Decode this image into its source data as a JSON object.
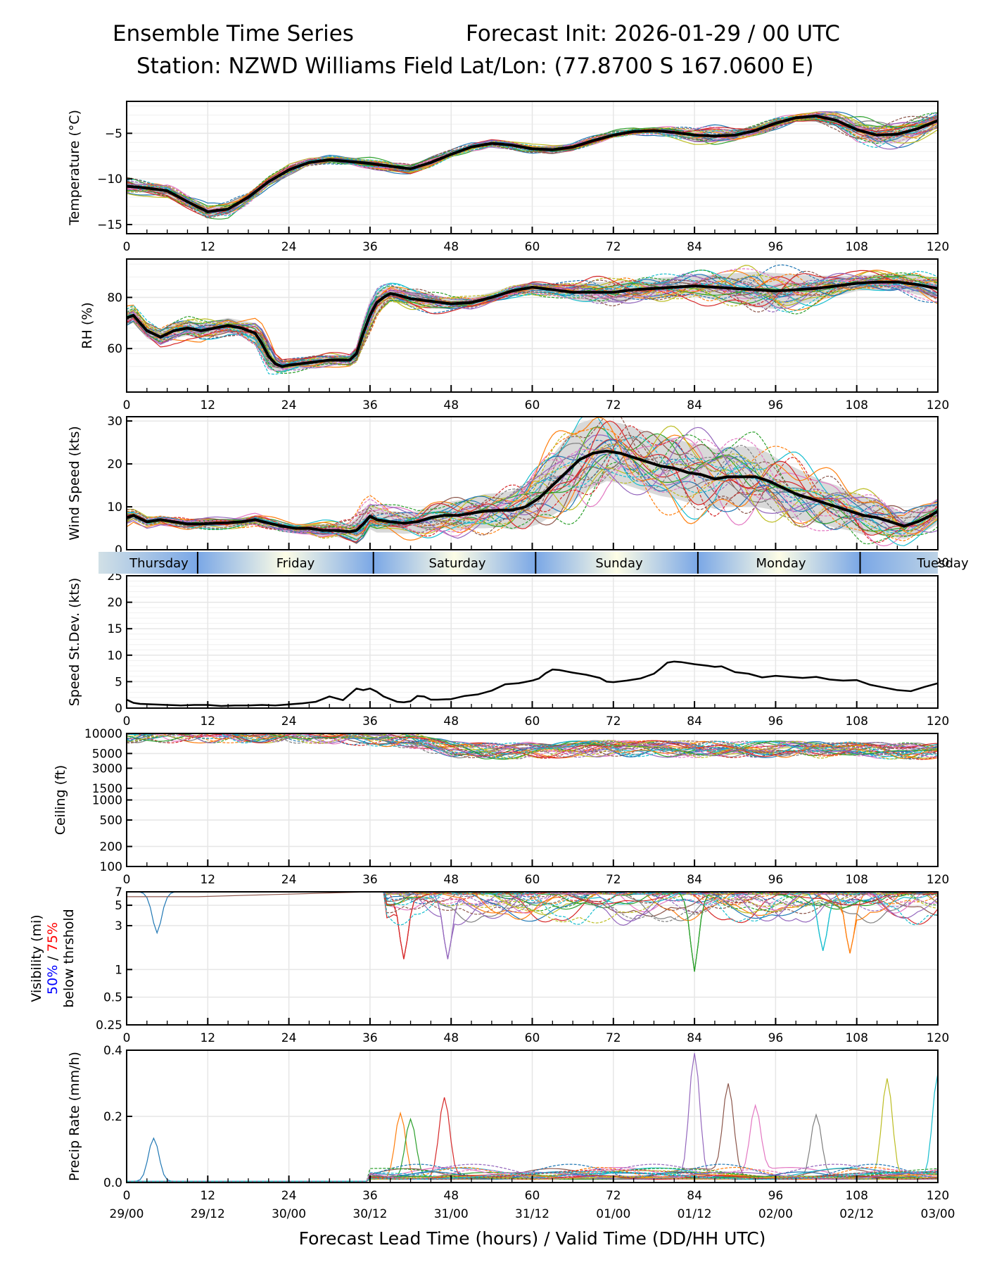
{
  "header": {
    "title_left": "Ensemble Time Series",
    "title_right": "Forecast Init: 2026-01-29 / 00 UTC",
    "station": "Station: NZWD Williams Field",
    "latlon": "Lat/Lon: (77.8700 S 167.0600 E)"
  },
  "colors": {
    "mean": "#000000",
    "spread": "#d9d9d9",
    "grid": "#e6e6e6",
    "members": [
      "#1f77b4",
      "#ff7f0e",
      "#2ca02c",
      "#d62728",
      "#9467bd",
      "#8c564b",
      "#e377c2",
      "#7f7f7f",
      "#bcbd22",
      "#17becf"
    ],
    "vis50": "#0000ff",
    "vis75": "#ff0000",
    "day_band_light": "#fdfde6",
    "day_band_dark": "#7aa7e6"
  },
  "x_axis": {
    "range": [
      0,
      120
    ],
    "ticks": [
      0,
      12,
      24,
      36,
      48,
      60,
      72,
      84,
      96,
      108,
      120
    ],
    "valid_time_labels": [
      "29/00",
      "29/12",
      "30/00",
      "30/12",
      "31/00",
      "31/12",
      "01/00",
      "01/12",
      "02/00",
      "02/12",
      "03/00"
    ],
    "label": "Forecast Lead Time (hours) / Valid Time (DD/HH UTC)"
  },
  "day_band": {
    "days": [
      {
        "label": "Thursday",
        "start": -2.5,
        "end": 10.5
      },
      {
        "label": "Friday",
        "start": 10.5,
        "end": 36.5
      },
      {
        "label": "Saturday",
        "start": 36.5,
        "end": 60.5
      },
      {
        "label": "Sunday",
        "start": 60.5,
        "end": 84.5
      },
      {
        "label": "Monday",
        "start": 84.5,
        "end": 108.5
      },
      {
        "label": "Tuesday",
        "start": 108.5,
        "end": 122.5
      }
    ]
  },
  "chart_data": [
    {
      "id": "temperature",
      "type": "line",
      "ylabel": "Temperature (°C)",
      "ylim": [
        -16,
        -1.5
      ],
      "yticks": [
        -15,
        -10,
        -5
      ],
      "ytick_labels": [
        "−15",
        "−10",
        "−5"
      ],
      "grid": true,
      "mean": {
        "x": [
          0,
          3,
          6,
          9,
          12,
          15,
          18,
          21,
          24,
          27,
          30,
          33,
          36,
          39,
          42,
          45,
          48,
          51,
          54,
          57,
          60,
          63,
          66,
          69,
          72,
          75,
          78,
          81,
          84,
          87,
          90,
          93,
          96,
          99,
          102,
          105,
          108,
          111,
          114,
          117,
          120
        ],
        "y": [
          -10.8,
          -11.0,
          -11.3,
          -12.5,
          -13.6,
          -13.3,
          -12.0,
          -10.3,
          -9.0,
          -8.2,
          -7.9,
          -8.1,
          -8.3,
          -8.6,
          -8.9,
          -8.2,
          -7.3,
          -6.5,
          -6.1,
          -6.3,
          -6.7,
          -6.8,
          -6.5,
          -5.8,
          -5.2,
          -4.8,
          -4.7,
          -4.9,
          -5.2,
          -5.3,
          -5.2,
          -4.7,
          -3.9,
          -3.3,
          -3.1,
          -3.6,
          -4.6,
          -5.2,
          -5.1,
          -4.5,
          -3.6
        ]
      },
      "spread_halfwidth": [
        0.6,
        0.5,
        0.5,
        0.5,
        0.6,
        0.6,
        0.5,
        0.4,
        0.4,
        0.3,
        0.3,
        0.3,
        0.4,
        0.4,
        0.4,
        0.4,
        0.3,
        0.3,
        0.3,
        0.3,
        0.3,
        0.3,
        0.3,
        0.3,
        0.3,
        0.3,
        0.3,
        0.4,
        0.6,
        0.7,
        0.6,
        0.4,
        0.4,
        0.3,
        0.4,
        0.6,
        0.9,
        1.0,
        1.0,
        0.9,
        0.7
      ],
      "member_count": 30
    },
    {
      "id": "rh",
      "type": "line",
      "ylabel": "RH (%)",
      "ylim": [
        43,
        95
      ],
      "yticks": [
        60,
        80
      ],
      "ytick_labels": [
        "60",
        "80"
      ],
      "grid": true,
      "mean": {
        "x": [
          0,
          1,
          3,
          5,
          7,
          9,
          11,
          13,
          15,
          17,
          19,
          20,
          21,
          22,
          23,
          24,
          27,
          30,
          33,
          34,
          35,
          36,
          37,
          38,
          39,
          40,
          42,
          45,
          48,
          51,
          54,
          57,
          60,
          63,
          66,
          69,
          72,
          75,
          78,
          81,
          84,
          87,
          90,
          93,
          96,
          99,
          102,
          105,
          108,
          111,
          114,
          117,
          120
        ],
        "y": [
          72,
          73,
          67,
          64.5,
          67,
          68,
          67,
          68,
          69,
          68,
          66,
          62,
          57,
          54,
          53,
          53.5,
          54.5,
          55.5,
          55.5,
          58,
          66,
          73,
          78,
          80,
          81.5,
          81,
          79.5,
          78.5,
          77.5,
          78,
          80,
          82.5,
          84,
          83,
          82,
          82,
          82,
          83,
          83.5,
          84,
          84.5,
          84,
          83.5,
          83,
          82.5,
          83,
          83.5,
          84.5,
          85.5,
          86,
          86,
          85,
          83.5
        ]
      },
      "spread_halfwidth": [
        3,
        3,
        3,
        3,
        3,
        3,
        3,
        3,
        3,
        3,
        4,
        5,
        5,
        3,
        2,
        2,
        2,
        2,
        2,
        3,
        5,
        6,
        5,
        4,
        3,
        3,
        3,
        3,
        2,
        2,
        2,
        2,
        2,
        2,
        3,
        4,
        4,
        4,
        4,
        4,
        4,
        5,
        6,
        7,
        7,
        6,
        5,
        4,
        3,
        3,
        3,
        4,
        4
      ],
      "member_count": 30
    },
    {
      "id": "wind_speed",
      "type": "line",
      "ylabel": "Wind Speed (kts)",
      "ylim": [
        0,
        31
      ],
      "yticks": [
        0,
        10,
        20,
        30
      ],
      "ytick_labels": [
        "0",
        "10",
        "20",
        "30"
      ],
      "grid": true,
      "mean": {
        "x": [
          0,
          1,
          3,
          5,
          7,
          9,
          11,
          13,
          15,
          17,
          19,
          21,
          23,
          25,
          27,
          29,
          31,
          33,
          34,
          35,
          36,
          37,
          39,
          41,
          43,
          45,
          47,
          49,
          51,
          53,
          55,
          57,
          59,
          61,
          63,
          65,
          67,
          69,
          71,
          73,
          75,
          77,
          79,
          81,
          83,
          85,
          87,
          89,
          91,
          93,
          95,
          97,
          99,
          101,
          103,
          105,
          107,
          109,
          111,
          113,
          115,
          117,
          119,
          120
        ],
        "y": [
          7.5,
          8,
          6.5,
          7,
          6.5,
          6,
          6,
          6.2,
          6.3,
          6.5,
          7,
          6.2,
          5.5,
          5,
          5,
          4.5,
          4.5,
          4.2,
          4.5,
          6,
          7.8,
          7,
          6.5,
          6.2,
          6.5,
          7.5,
          8,
          8,
          8.5,
          9,
          9.2,
          9.2,
          10,
          12,
          15,
          18,
          21,
          22.5,
          23,
          22.5,
          21.5,
          20.5,
          19.5,
          19,
          18,
          17.5,
          16.5,
          17,
          17,
          17,
          16,
          14.5,
          13,
          12,
          11,
          10,
          9,
          8,
          7.5,
          6.5,
          5.5,
          6.5,
          8,
          9
        ]
      },
      "spread_halfwidth": [
        1.5,
        1,
        1,
        1,
        1,
        1,
        1,
        1,
        1,
        1,
        1,
        1,
        1,
        1,
        1,
        1.5,
        1.5,
        2,
        3,
        3.5,
        3,
        3,
        2.5,
        2.5,
        2.5,
        3,
        3,
        3.5,
        3.5,
        4,
        4,
        4.5,
        5,
        6,
        7,
        8,
        8.5,
        8,
        7,
        7,
        7,
        7,
        7,
        7,
        7,
        7,
        7,
        7,
        7,
        7,
        6.5,
        6,
        6,
        5.5,
        5,
        5,
        4.5,
        4.5,
        4,
        3.5,
        3,
        3,
        3,
        3
      ],
      "member_count": 30
    },
    {
      "id": "speed_stdev",
      "type": "line",
      "ylabel": "Speed St.Dev. (kts)",
      "ylim": [
        0,
        25
      ],
      "yticks": [
        0,
        5,
        10,
        15,
        20,
        25
      ],
      "ytick_labels": [
        "0",
        "5",
        "10",
        "15",
        "20",
        "25"
      ],
      "grid": true,
      "series": [
        {
          "name": "speed_stdev",
          "x": [
            0,
            1,
            2,
            4,
            6,
            8,
            10,
            12,
            14,
            16,
            18,
            20,
            22,
            24,
            26,
            28,
            30,
            32,
            34,
            35,
            36,
            37,
            38,
            40,
            41,
            42,
            43,
            44,
            45,
            46,
            48,
            50,
            52,
            54,
            56,
            58,
            60,
            61,
            62,
            63,
            64,
            66,
            68,
            70,
            71,
            72,
            74,
            76,
            78,
            79,
            80,
            81,
            82,
            84,
            86,
            87,
            88,
            90,
            92,
            94,
            96,
            98,
            100,
            102,
            104,
            106,
            108,
            110,
            112,
            114,
            116,
            118,
            120
          ],
          "y": [
            1.6,
            1,
            0.8,
            0.7,
            0.6,
            0.5,
            0.6,
            0.6,
            0.4,
            0.5,
            0.5,
            0.6,
            0.5,
            0.7,
            0.9,
            1.2,
            2.2,
            1.5,
            3.7,
            3.4,
            3.7,
            3.1,
            2.2,
            1.2,
            1.1,
            1.3,
            2.3,
            2.2,
            1.6,
            1.6,
            1.7,
            2.3,
            2.6,
            3.3,
            4.5,
            4.7,
            5.2,
            5.6,
            6.6,
            7.3,
            7.2,
            6.7,
            6.3,
            5.7,
            5.0,
            4.9,
            5.2,
            5.6,
            6.5,
            7.5,
            8.6,
            8.8,
            8.7,
            8.3,
            8.0,
            7.8,
            7.9,
            6.8,
            6.5,
            5.8,
            6.1,
            5.9,
            5.7,
            5.9,
            5.4,
            5.2,
            5.3,
            4.4,
            3.9,
            3.4,
            3.2,
            4.0,
            4.7
          ]
        }
      ]
    },
    {
      "id": "ceiling",
      "type": "line",
      "ylabel": "Ceiling (ft)",
      "yscale": "log",
      "ylim": [
        100,
        10000
      ],
      "yticks": [
        100,
        200,
        500,
        1000,
        1500,
        3000,
        5000,
        10000
      ],
      "ytick_labels": [
        "100",
        "200",
        "500",
        "1000",
        "1500",
        "3000",
        "5000",
        "10000"
      ],
      "grid": true,
      "member_envelope": {
        "x": [
          0,
          12,
          24,
          36,
          42,
          48,
          54,
          60,
          72,
          84,
          96,
          108,
          120
        ],
        "y": [
          10000,
          10000,
          10000,
          9000,
          8000,
          6000,
          5600,
          5800,
          6200,
          6000,
          6000,
          5800,
          5600
        ]
      },
      "member_count": 30
    },
    {
      "id": "visibility",
      "type": "line",
      "ylabel": "Visibility (mi)",
      "ylabel_line2_50": "50%",
      "ylabel_line2_sep": " / ",
      "ylabel_line2_75": "75%",
      "ylabel_line3": "below thrshold",
      "yscale": "log",
      "ylim": [
        0.25,
        7
      ],
      "yticks": [
        0.25,
        0.5,
        1,
        3,
        5,
        7
      ],
      "ytick_labels": [
        "0.25",
        "0.5",
        "1",
        "3",
        "5",
        "7"
      ],
      "grid": true,
      "notable_minima": [
        {
          "x": 4.5,
          "y": 2.5
        },
        {
          "x": 41,
          "y": 1.3
        },
        {
          "x": 47.5,
          "y": 1.3
        },
        {
          "x": 84,
          "y": 0.95
        },
        {
          "x": 103,
          "y": 1.6
        },
        {
          "x": 107,
          "y": 1.5
        }
      ],
      "member_count": 30
    },
    {
      "id": "precip_rate",
      "type": "line",
      "ylabel": "Precip Rate (mm/h)",
      "ylim": [
        0,
        0.4
      ],
      "yticks": [
        0.0,
        0.2,
        0.4
      ],
      "ytick_labels": [
        "0.0",
        "0.2",
        "0.4"
      ],
      "grid": true,
      "notable_peaks": [
        {
          "x": 4,
          "y": 0.13
        },
        {
          "x": 40.5,
          "y": 0.2
        },
        {
          "x": 42,
          "y": 0.18
        },
        {
          "x": 47,
          "y": 0.24
        },
        {
          "x": 84,
          "y": 0.38
        },
        {
          "x": 89,
          "y": 0.27
        },
        {
          "x": 93,
          "y": 0.2
        },
        {
          "x": 102,
          "y": 0.19
        },
        {
          "x": 112.5,
          "y": 0.3
        },
        {
          "x": 120,
          "y": 0.32
        }
      ],
      "member_count": 30
    }
  ]
}
